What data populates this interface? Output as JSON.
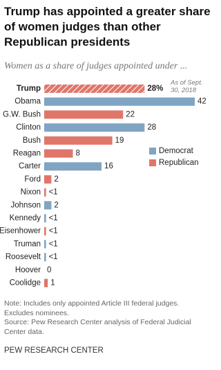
{
  "chart_data": {
    "type": "bar",
    "orientation": "horizontal",
    "title": "Trump has appointed a greater share of women judges than other Republican presidents",
    "subtitle": "Women as a share of judges appointed under ...",
    "annotation": "As of Sept. 30, 2018",
    "categories": [
      "Trump",
      "Obama",
      "G.W. Bush",
      "Clinton",
      "Bush",
      "Reagan",
      "Carter",
      "Ford",
      "Nixon",
      "Johnson",
      "Kennedy",
      "Eisenhower",
      "Truman",
      "Roosevelt",
      "Hoover",
      "Coolidge"
    ],
    "series": [
      {
        "name": "Democrat",
        "color": "#7fa5c3",
        "values": [
          null,
          42,
          null,
          28,
          null,
          null,
          16,
          null,
          null,
          2,
          0.5,
          null,
          0.5,
          0.5,
          null,
          null
        ],
        "value_labels": [
          null,
          "42",
          null,
          "28",
          null,
          null,
          "16",
          null,
          null,
          "2",
          "<1",
          null,
          "<1",
          "<1",
          null,
          null
        ]
      },
      {
        "name": "Republican",
        "color": "#e0766a",
        "values": [
          28,
          null,
          22,
          null,
          19,
          8,
          null,
          2,
          0.5,
          null,
          null,
          0.5,
          null,
          null,
          0,
          1
        ],
        "value_labels": [
          "28%",
          null,
          "22",
          null,
          "19",
          "8",
          null,
          "2",
          "<1",
          null,
          null,
          "<1",
          null,
          null,
          "0",
          "1"
        ]
      }
    ],
    "hatched_categories": [
      "Trump"
    ],
    "xlim": [
      0,
      42
    ],
    "legend": "right",
    "notes": [
      "Note: Includes only appointed Article III federal judges. Excludes nominees.",
      "Source: Pew Research Center analysis of Federal Judicial Center data."
    ],
    "credit": "PEW RESEARCH CENTER"
  }
}
